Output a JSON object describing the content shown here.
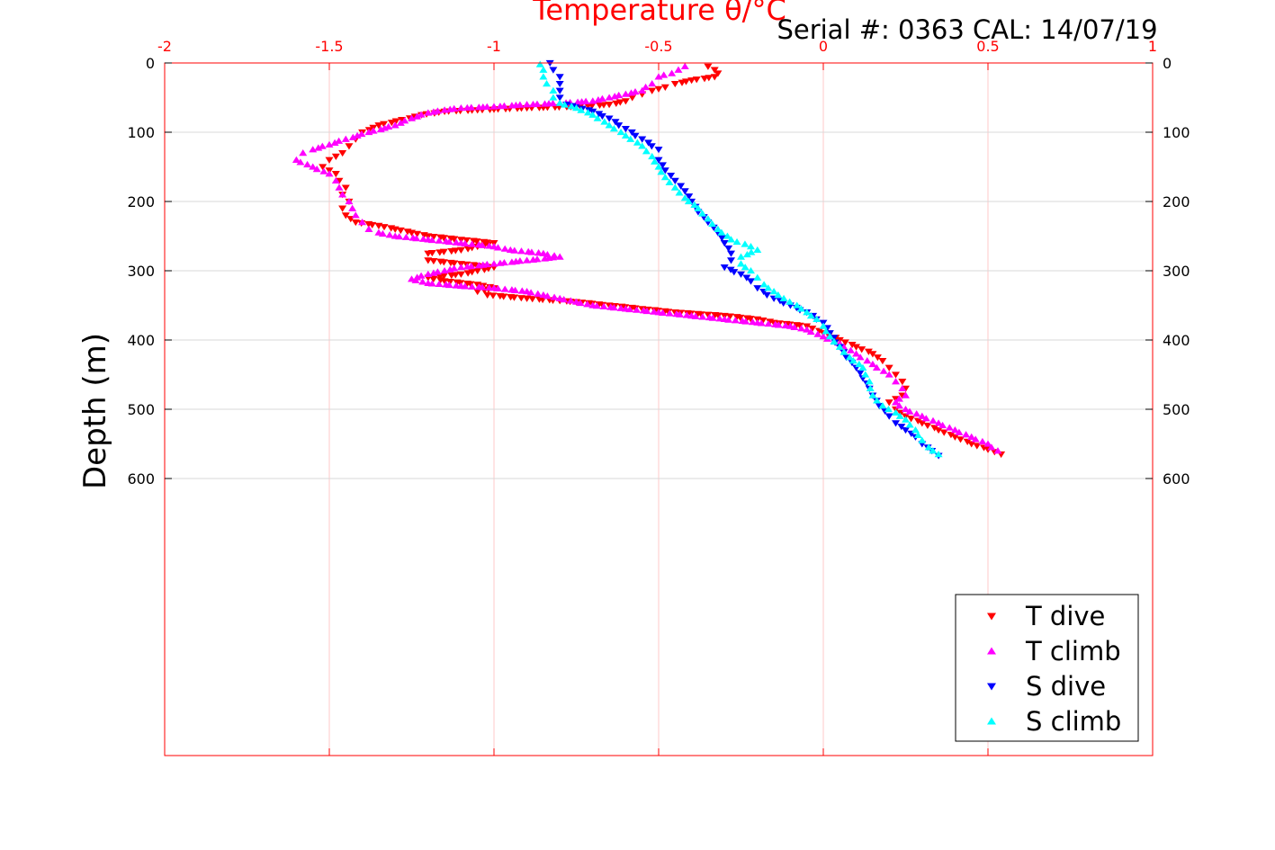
{
  "header": {
    "serial_text": "Serial #: 0363  CAL: 14/07/19"
  },
  "chart_data": {
    "type": "scatter",
    "title": "",
    "xlabel": "Temperature θ/°C",
    "ylabel": "Depth (m)",
    "xlim": [
      -2,
      1
    ],
    "ylim": [
      0,
      1000
    ],
    "y_reversed": true,
    "x_axis_position": "top",
    "x_ticks": [
      -2,
      -1.5,
      -1,
      -0.5,
      0,
      0.5,
      1
    ],
    "x_tick_labels": [
      "-2",
      "-1.5",
      "-1",
      "-0.5",
      "0",
      "0.5",
      "1"
    ],
    "y_ticks": [
      0,
      100,
      200,
      300,
      400,
      500,
      600
    ],
    "y_tick_labels": [
      "0",
      "100",
      "200",
      "300",
      "400",
      "500",
      "600"
    ],
    "grid": true,
    "legend_position": "bottom-right",
    "colors": {
      "axis": "#ff0000",
      "grid": "#ffc8c8",
      "grid_y": "#d9d9d9"
    },
    "series": [
      {
        "name": "T dive",
        "marker": "triangle-down",
        "color": "#ff0000",
        "points": [
          [
            -0.35,
            5
          ],
          [
            -0.33,
            10
          ],
          [
            -0.32,
            15
          ],
          [
            -0.33,
            20
          ],
          [
            -0.4,
            25
          ],
          [
            -0.45,
            30
          ],
          [
            -0.48,
            35
          ],
          [
            -0.52,
            40
          ],
          [
            -0.55,
            45
          ],
          [
            -0.58,
            50
          ],
          [
            -0.6,
            55
          ],
          [
            -0.65,
            60
          ],
          [
            -0.75,
            63
          ],
          [
            -0.9,
            65
          ],
          [
            -1.05,
            68
          ],
          [
            -1.15,
            70
          ],
          [
            -1.22,
            75
          ],
          [
            -1.28,
            82
          ],
          [
            -1.35,
            90
          ],
          [
            -1.4,
            100
          ],
          [
            -1.42,
            110
          ],
          [
            -1.44,
            120
          ],
          [
            -1.46,
            130
          ],
          [
            -1.5,
            140
          ],
          [
            -1.52,
            150
          ],
          [
            -1.48,
            160
          ],
          [
            -1.47,
            170
          ],
          [
            -1.45,
            180
          ],
          [
            -1.46,
            190
          ],
          [
            -1.44,
            200
          ],
          [
            -1.46,
            210
          ],
          [
            -1.45,
            220
          ],
          [
            -1.42,
            230
          ],
          [
            -1.35,
            235
          ],
          [
            -1.3,
            240
          ],
          [
            -1.25,
            245
          ],
          [
            -1.2,
            250
          ],
          [
            -1.1,
            255
          ],
          [
            -1.0,
            260
          ],
          [
            -1.05,
            265
          ],
          [
            -1.1,
            270
          ],
          [
            -1.2,
            275
          ],
          [
            -1.2,
            285
          ],
          [
            -1.1,
            290
          ],
          [
            -1.0,
            295
          ],
          [
            -1.05,
            300
          ],
          [
            -1.1,
            305
          ],
          [
            -1.2,
            310
          ],
          [
            -1.15,
            315
          ],
          [
            -1.05,
            320
          ],
          [
            -1.0,
            325
          ],
          [
            -1.05,
            330
          ],
          [
            -1.02,
            335
          ],
          [
            -0.9,
            340
          ],
          [
            -0.75,
            345
          ],
          [
            -0.65,
            350
          ],
          [
            -0.55,
            355
          ],
          [
            -0.45,
            360
          ],
          [
            -0.3,
            365
          ],
          [
            -0.2,
            370
          ],
          [
            -0.15,
            375
          ],
          [
            -0.05,
            380
          ],
          [
            0.0,
            390
          ],
          [
            0.05,
            400
          ],
          [
            0.1,
            410
          ],
          [
            0.15,
            420
          ],
          [
            0.18,
            430
          ],
          [
            0.2,
            440
          ],
          [
            0.22,
            450
          ],
          [
            0.24,
            460
          ],
          [
            0.25,
            470
          ],
          [
            0.24,
            480
          ],
          [
            0.2,
            490
          ],
          [
            0.22,
            500
          ],
          [
            0.25,
            510
          ],
          [
            0.3,
            520
          ],
          [
            0.35,
            530
          ],
          [
            0.4,
            540
          ],
          [
            0.45,
            550
          ],
          [
            0.5,
            558
          ],
          [
            0.54,
            565
          ]
        ]
      },
      {
        "name": "T climb",
        "marker": "triangle-up",
        "color": "#ff00ff",
        "points": [
          [
            -0.42,
            5
          ],
          [
            -0.44,
            10
          ],
          [
            -0.46,
            15
          ],
          [
            -0.5,
            20
          ],
          [
            -0.52,
            30
          ],
          [
            -0.55,
            40
          ],
          [
            -0.6,
            45
          ],
          [
            -0.65,
            50
          ],
          [
            -0.7,
            55
          ],
          [
            -0.8,
            58
          ],
          [
            -0.9,
            60
          ],
          [
            -1.0,
            63
          ],
          [
            -1.1,
            65
          ],
          [
            -1.15,
            68
          ],
          [
            -1.2,
            72
          ],
          [
            -1.25,
            80
          ],
          [
            -1.3,
            90
          ],
          [
            -1.38,
            100
          ],
          [
            -1.45,
            110
          ],
          [
            -1.5,
            118
          ],
          [
            -1.55,
            125
          ],
          [
            -1.58,
            130
          ],
          [
            -1.6,
            140
          ],
          [
            -1.55,
            150
          ],
          [
            -1.5,
            160
          ],
          [
            -1.48,
            170
          ],
          [
            -1.47,
            180
          ],
          [
            -1.46,
            190
          ],
          [
            -1.44,
            200
          ],
          [
            -1.43,
            210
          ],
          [
            -1.42,
            220
          ],
          [
            -1.4,
            230
          ],
          [
            -1.38,
            240
          ],
          [
            -1.35,
            245
          ],
          [
            -1.3,
            250
          ],
          [
            -1.2,
            255
          ],
          [
            -1.1,
            260
          ],
          [
            -1.0,
            265
          ],
          [
            -0.95,
            270
          ],
          [
            -0.85,
            275
          ],
          [
            -0.8,
            280
          ],
          [
            -0.9,
            285
          ],
          [
            -1.0,
            290
          ],
          [
            -1.1,
            295
          ],
          [
            -1.15,
            300
          ],
          [
            -1.2,
            305
          ],
          [
            -1.25,
            312
          ],
          [
            -1.2,
            318
          ],
          [
            -1.1,
            322
          ],
          [
            -1.0,
            325
          ],
          [
            -0.9,
            330
          ],
          [
            -0.85,
            335
          ],
          [
            -0.8,
            340
          ],
          [
            -0.75,
            345
          ],
          [
            -0.7,
            350
          ],
          [
            -0.6,
            355
          ],
          [
            -0.5,
            360
          ],
          [
            -0.4,
            365
          ],
          [
            -0.3,
            370
          ],
          [
            -0.2,
            375
          ],
          [
            -0.1,
            380
          ],
          [
            -0.05,
            385
          ],
          [
            0.0,
            395
          ],
          [
            0.05,
            405
          ],
          [
            0.1,
            420
          ],
          [
            0.15,
            435
          ],
          [
            0.2,
            450
          ],
          [
            0.22,
            460
          ],
          [
            0.24,
            470
          ],
          [
            0.25,
            480
          ],
          [
            0.22,
            490
          ],
          [
            0.25,
            500
          ],
          [
            0.3,
            510
          ],
          [
            0.35,
            520
          ],
          [
            0.4,
            530
          ],
          [
            0.45,
            540
          ],
          [
            0.5,
            550
          ],
          [
            0.53,
            560
          ]
        ]
      },
      {
        "name": "S dive",
        "marker": "triangle-down",
        "color": "#0000ff",
        "points": [
          [
            -0.83,
            0
          ],
          [
            -0.82,
            10
          ],
          [
            -0.8,
            20
          ],
          [
            -0.8,
            30
          ],
          [
            -0.8,
            40
          ],
          [
            -0.8,
            50
          ],
          [
            -0.78,
            60
          ],
          [
            -0.7,
            70
          ],
          [
            -0.65,
            80
          ],
          [
            -0.6,
            95
          ],
          [
            -0.55,
            110
          ],
          [
            -0.5,
            125
          ],
          [
            -0.5,
            140
          ],
          [
            -0.48,
            155
          ],
          [
            -0.45,
            170
          ],
          [
            -0.42,
            185
          ],
          [
            -0.4,
            200
          ],
          [
            -0.38,
            215
          ],
          [
            -0.35,
            230
          ],
          [
            -0.32,
            245
          ],
          [
            -0.3,
            260
          ],
          [
            -0.28,
            275
          ],
          [
            -0.28,
            285
          ],
          [
            -0.3,
            295
          ],
          [
            -0.25,
            305
          ],
          [
            -0.22,
            315
          ],
          [
            -0.2,
            325
          ],
          [
            -0.15,
            340
          ],
          [
            -0.1,
            350
          ],
          [
            -0.05,
            360
          ],
          [
            0.0,
            375
          ],
          [
            0.02,
            390
          ],
          [
            0.05,
            410
          ],
          [
            0.07,
            425
          ],
          [
            0.1,
            440
          ],
          [
            0.12,
            455
          ],
          [
            0.14,
            470
          ],
          [
            0.15,
            480
          ],
          [
            0.17,
            495
          ],
          [
            0.2,
            510
          ],
          [
            0.22,
            520
          ],
          [
            0.25,
            530
          ],
          [
            0.28,
            540
          ],
          [
            0.3,
            550
          ],
          [
            0.33,
            560
          ],
          [
            0.35,
            567
          ]
        ]
      },
      {
        "name": "S climb",
        "marker": "triangle-up",
        "color": "#00ffff",
        "points": [
          [
            -0.86,
            2
          ],
          [
            -0.85,
            10
          ],
          [
            -0.85,
            20
          ],
          [
            -0.84,
            30
          ],
          [
            -0.82,
            40
          ],
          [
            -0.82,
            50
          ],
          [
            -0.8,
            58
          ],
          [
            -0.75,
            65
          ],
          [
            -0.7,
            75
          ],
          [
            -0.65,
            90
          ],
          [
            -0.6,
            105
          ],
          [
            -0.55,
            120
          ],
          [
            -0.52,
            135
          ],
          [
            -0.5,
            150
          ],
          [
            -0.48,
            165
          ],
          [
            -0.45,
            180
          ],
          [
            -0.42,
            195
          ],
          [
            -0.38,
            210
          ],
          [
            -0.35,
            225
          ],
          [
            -0.32,
            240
          ],
          [
            -0.28,
            255
          ],
          [
            -0.22,
            265
          ],
          [
            -0.2,
            270
          ],
          [
            -0.25,
            280
          ],
          [
            -0.25,
            290
          ],
          [
            -0.22,
            300
          ],
          [
            -0.2,
            310
          ],
          [
            -0.18,
            320
          ],
          [
            -0.15,
            330
          ],
          [
            -0.12,
            340
          ],
          [
            -0.08,
            350
          ],
          [
            -0.05,
            360
          ],
          [
            -0.02,
            370
          ],
          [
            0.0,
            380
          ],
          [
            0.02,
            395
          ],
          [
            0.05,
            410
          ],
          [
            0.08,
            425
          ],
          [
            0.12,
            440
          ],
          [
            0.14,
            460
          ],
          [
            0.15,
            480
          ],
          [
            0.18,
            495
          ],
          [
            0.22,
            505
          ],
          [
            0.25,
            515
          ],
          [
            0.28,
            530
          ],
          [
            0.3,
            545
          ],
          [
            0.32,
            555
          ],
          [
            0.35,
            565
          ]
        ]
      }
    ]
  }
}
